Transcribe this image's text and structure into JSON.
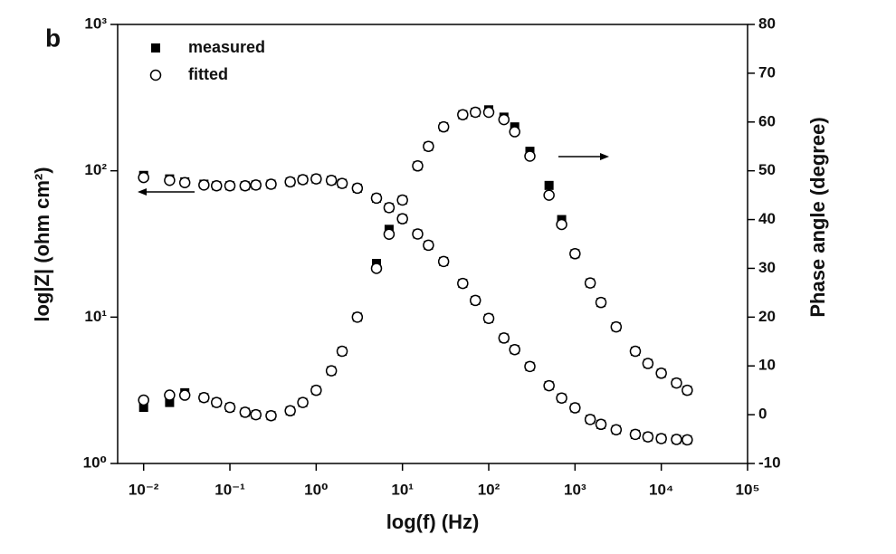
{
  "chart_data": {
    "type": "scatter",
    "panel_label": "b",
    "x_label": "log(f)  (Hz)",
    "y_label": "log|Z|  (ohm cm²)",
    "y2_label": "Phase angle (degree)",
    "x_log": true,
    "y_log": true,
    "legend": "upper left",
    "xlim": [
      0.005,
      100000
    ],
    "xticks": [
      {
        "value": 0.01,
        "label": "10⁻²"
      },
      {
        "value": 0.1,
        "label": "10⁻¹"
      },
      {
        "value": 1,
        "label": "10⁰"
      },
      {
        "value": 10,
        "label": "10¹"
      },
      {
        "value": 100,
        "label": "10²"
      },
      {
        "value": 1000,
        "label": "10³"
      },
      {
        "value": 10000,
        "label": "10⁴"
      },
      {
        "value": 100000,
        "label": "10⁵"
      }
    ],
    "ylim": [
      1,
      1000
    ],
    "yticks": [
      {
        "value": 1,
        "label": "10⁰"
      },
      {
        "value": 10,
        "label": "10¹"
      },
      {
        "value": 100,
        "label": "10²"
      },
      {
        "value": 1000,
        "label": "10³"
      }
    ],
    "y2lim": [
      -10,
      80
    ],
    "y2ticks": [
      -10,
      0,
      10,
      20,
      30,
      40,
      50,
      60,
      70,
      80
    ],
    "x": [
      0.01,
      0.02,
      0.03,
      0.05,
      0.07,
      0.1,
      0.15,
      0.2,
      0.3,
      0.5,
      0.7,
      1,
      1.5,
      2,
      3,
      5,
      7,
      10,
      15,
      20,
      30,
      50,
      70,
      100,
      150,
      200,
      300,
      500,
      700,
      1000,
      1500,
      2000,
      3000,
      5000,
      7000,
      10000,
      15000,
      20000
    ],
    "series": [
      {
        "name": "measured",
        "marker": "square",
        "color": "#000000",
        "values": [
          93,
          88,
          84,
          81,
          79,
          79,
          79,
          80,
          81,
          84,
          87,
          88,
          86,
          82,
          76,
          65,
          56,
          47,
          37,
          31,
          24,
          17,
          13,
          9.8,
          7.2,
          6,
          4.6,
          3.4,
          2.8,
          2.4,
          2.0,
          1.85,
          1.7,
          1.58,
          1.52,
          1.48,
          1.46,
          1.45
        ]
      },
      {
        "name": "fitted",
        "marker": "circle",
        "color": "#000000",
        "values": [
          90,
          86,
          83,
          80,
          79,
          79,
          79,
          80,
          81,
          84,
          87,
          88,
          86,
          82,
          76,
          65,
          56,
          47,
          37,
          31,
          24,
          17,
          13,
          9.8,
          7.2,
          6,
          4.6,
          3.4,
          2.8,
          2.4,
          2.0,
          1.85,
          1.7,
          1.58,
          1.52,
          1.48,
          1.46,
          1.45
        ]
      },
      {
        "name": "measured",
        "marker": "square",
        "color": "#000000",
        "axis": "y2",
        "values": [
          1.5,
          2.5,
          4.5,
          3.5,
          2.5,
          1.5,
          0.5,
          0,
          -0.2,
          0.8,
          2.5,
          5,
          9,
          13,
          20,
          31,
          38,
          44,
          51,
          55,
          59,
          61.5,
          62,
          62.5,
          61,
          59,
          54,
          47,
          40,
          33,
          27,
          23,
          18,
          13,
          10.5,
          8.5,
          6.5,
          5
        ]
      },
      {
        "name": "fitted",
        "marker": "circle",
        "color": "#000000",
        "axis": "y2",
        "values": [
          3,
          4,
          4,
          3.5,
          2.5,
          1.5,
          0.5,
          0,
          -0.2,
          0.8,
          2.5,
          5,
          9,
          13,
          20,
          30,
          37,
          44,
          51,
          55,
          59,
          61.5,
          62,
          62,
          60.5,
          58,
          53,
          45,
          39,
          33,
          27,
          23,
          18,
          13,
          10.5,
          8.5,
          6.5,
          5
        ]
      }
    ]
  }
}
